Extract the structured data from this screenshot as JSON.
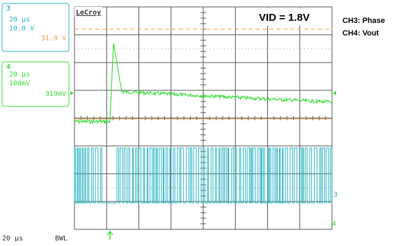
{
  "channel3": {
    "number": "3",
    "timebase": "20 µs",
    "scale": "10.0 V",
    "offset": "31.9 V"
  },
  "channel4": {
    "number": "4",
    "timebase": "20 µs",
    "scale": "100mV",
    "offset": "319mV"
  },
  "brand": "LeCroy",
  "annotation": "VID = 1.8V",
  "legend": [
    "CH3: Phase",
    "CH4: Vout"
  ],
  "footer": {
    "timebase": "20 µs",
    "bandwidth": "BWL"
  },
  "markers": {
    "ch3": "3",
    "ch4": "4"
  }
}
